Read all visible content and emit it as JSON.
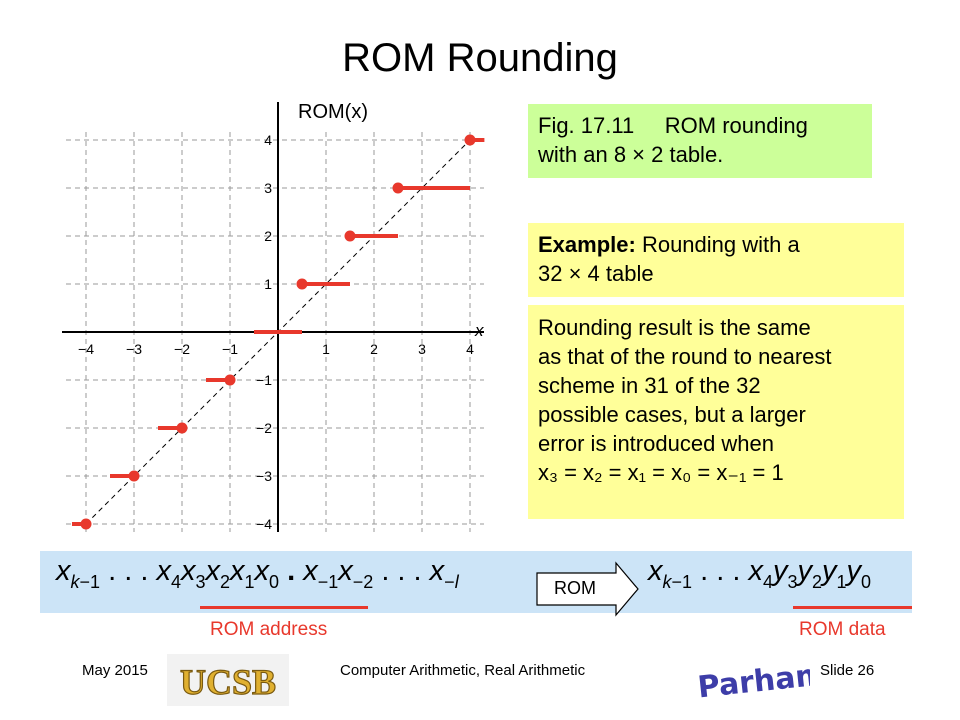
{
  "title": "ROM Rounding",
  "graph": {
    "y_label": "ROM(x)",
    "x_label": "x",
    "x_ticks": [
      "−4",
      "−3",
      "−2",
      "−1",
      "1",
      "2",
      "3",
      "4"
    ],
    "y_ticks": [
      "4",
      "3",
      "2",
      "1",
      "−1",
      "−2",
      "−3",
      "−4"
    ]
  },
  "chart_data": {
    "type": "step",
    "xlim": [
      -4,
      4
    ],
    "ylim": [
      -4,
      4
    ],
    "xlabel": "x",
    "ylabel": "ROM(x)",
    "grid": true,
    "diagonal_reference": true,
    "steps": [
      {
        "x_start": -4,
        "x_end": -4,
        "y": -4,
        "dot": "left"
      },
      {
        "x_start": -3.5,
        "x_end": -3,
        "y": -3,
        "dot": "right"
      },
      {
        "x_start": -2.5,
        "x_end": -2,
        "y": -2,
        "dot": "right"
      },
      {
        "x_start": -1.5,
        "x_end": -1,
        "y": -1,
        "dot": "right"
      },
      {
        "x_start": -0.5,
        "x_end": 0.5,
        "y": 0,
        "dot": "none"
      },
      {
        "x_start": 0.5,
        "x_end": 1.5,
        "y": 1,
        "dot": "left"
      },
      {
        "x_start": 1.5,
        "x_end": 2.5,
        "y": 2,
        "dot": "left"
      },
      {
        "x_start": 2.5,
        "x_end": 4,
        "y": 3,
        "dot": "left"
      },
      {
        "x_start": 4,
        "x_end": 4.3,
        "y": 4,
        "dot": "left"
      }
    ]
  },
  "fig_caption": {
    "line1": "Fig. 17.11     ROM rounding",
    "line2": "with an 8 × 2 table."
  },
  "example": {
    "bold": "Example:",
    "line1_rest": " Rounding with a",
    "line2": "32 × 4 table"
  },
  "result_text": [
    "Rounding result is the same",
    "as that of the round to nearest",
    "scheme in 31 of the 32",
    "possible cases, but a larger",
    "error is introduced when"
  ],
  "result_eq": "x₃ = x₂ = x₁ = x₀ = x₋₁ = 1",
  "rom_arrow_label": "ROM",
  "rom_address_label": "ROM address",
  "rom_data_label": "ROM data",
  "footer": {
    "date": "May 2015",
    "course": "Computer Arithmetic, Real Arithmetic",
    "slide": "Slide 26"
  },
  "logos": {
    "left_text": "UCSB",
    "right_text": "B Parhami"
  },
  "colors": {
    "caption_bg": "#ccff99",
    "note_bg": "#ffff99",
    "band_bg": "#cce4f7",
    "step_red": "#e8382c",
    "grid": "#9a9a9a"
  }
}
